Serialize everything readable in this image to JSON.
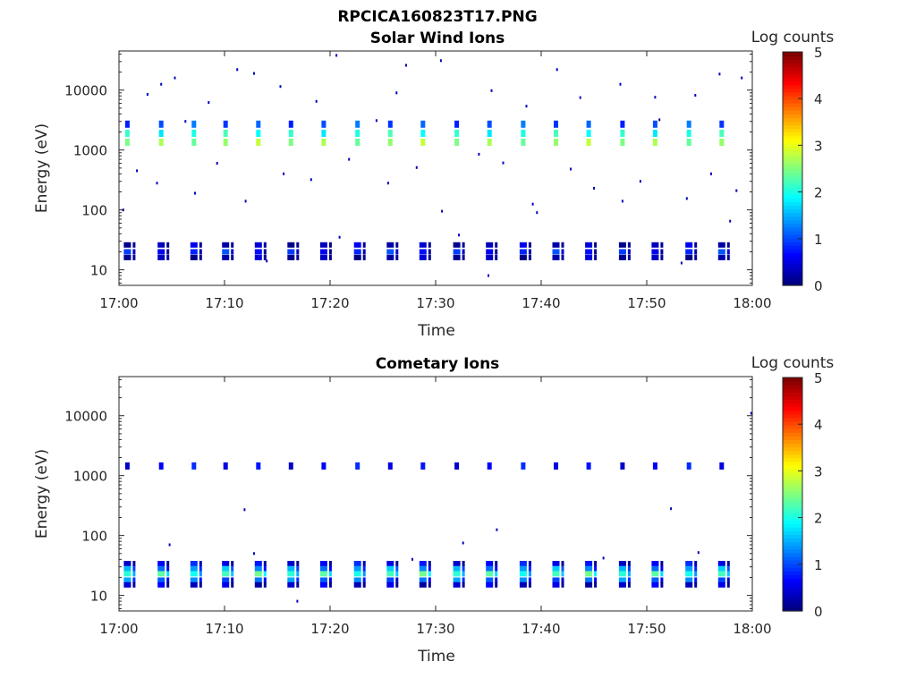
{
  "figure": {
    "title": "RPCICA160823T17.PNG"
  },
  "chart_data": [
    {
      "type": "heatmap",
      "title": "Solar Wind Ions",
      "xlabel": "Time",
      "ylabel": "Energy (eV)",
      "x_range": [
        "17:00",
        "18:00"
      ],
      "x_ticks": [
        "17:00",
        "17:10",
        "17:20",
        "17:30",
        "17:40",
        "17:50",
        "18:00"
      ],
      "y_scale": "log",
      "ylim": [
        5.5,
        45000
      ],
      "y_ticks": [
        {
          "value": 10,
          "label": "10"
        },
        {
          "value": 100,
          "label": "100"
        },
        {
          "value": 1000,
          "label": "1000"
        },
        {
          "value": 10000,
          "label": "10000"
        }
      ],
      "colorbar": {
        "label": "Log counts",
        "min": 0,
        "max": 5,
        "ticks": [
          "0",
          "1",
          "2",
          "3",
          "4",
          "5"
        ],
        "colormap": "jet"
      },
      "sweep_start_minutes": [
        0.8,
        4.0,
        7.1,
        10.1,
        13.2,
        16.3,
        19.4,
        22.6,
        25.7,
        28.8,
        32.0,
        35.1,
        38.3,
        41.4,
        44.5,
        47.7,
        50.8,
        54.0,
        57.1
      ],
      "bands": [
        {
          "name": "upper",
          "energies": [
            2700,
            1900,
            1350
          ],
          "log_counts": [
            1.0,
            2.0,
            2.6
          ]
        },
        {
          "name": "low",
          "energies": [
            26,
            20,
            16
          ],
          "log_counts": [
            0.3,
            0.8,
            0.2
          ]
        }
      ],
      "sparse_points": [
        {
          "t": 2.7,
          "e": 8500,
          "c": 0.3
        },
        {
          "t": 4.0,
          "e": 12500,
          "c": 0.3
        },
        {
          "t": 5.3,
          "e": 16000,
          "c": 0.3
        },
        {
          "t": 8.5,
          "e": 6200,
          "c": 0.3
        },
        {
          "t": 11.2,
          "e": 22000,
          "c": 0.3
        },
        {
          "t": 12.8,
          "e": 19000,
          "c": 0.3
        },
        {
          "t": 15.3,
          "e": 11500,
          "c": 0.3
        },
        {
          "t": 18.7,
          "e": 6500,
          "c": 0.3
        },
        {
          "t": 20.6,
          "e": 38000,
          "c": 0.3
        },
        {
          "t": 26.3,
          "e": 9000,
          "c": 0.3
        },
        {
          "t": 27.2,
          "e": 26000,
          "c": 0.3
        },
        {
          "t": 30.5,
          "e": 31000,
          "c": 0.3
        },
        {
          "t": 35.3,
          "e": 9800,
          "c": 0.3
        },
        {
          "t": 38.6,
          "e": 5400,
          "c": 0.3
        },
        {
          "t": 41.5,
          "e": 22000,
          "c": 0.3
        },
        {
          "t": 43.7,
          "e": 7500,
          "c": 0.3
        },
        {
          "t": 47.5,
          "e": 12500,
          "c": 0.3
        },
        {
          "t": 50.8,
          "e": 7600,
          "c": 0.3
        },
        {
          "t": 54.6,
          "e": 8200,
          "c": 0.3
        },
        {
          "t": 56.9,
          "e": 18500,
          "c": 0.3
        },
        {
          "t": 59.0,
          "e": 16000,
          "c": 0.3
        },
        {
          "t": 1.7,
          "e": 450,
          "c": 0.3
        },
        {
          "t": 3.6,
          "e": 280,
          "c": 0.3
        },
        {
          "t": 7.2,
          "e": 190,
          "c": 0.3
        },
        {
          "t": 9.3,
          "e": 600,
          "c": 0.3
        },
        {
          "t": 12.0,
          "e": 140,
          "c": 0.3
        },
        {
          "t": 15.6,
          "e": 400,
          "c": 0.3
        },
        {
          "t": 18.2,
          "e": 320,
          "c": 0.3
        },
        {
          "t": 21.8,
          "e": 700,
          "c": 0.3
        },
        {
          "t": 25.5,
          "e": 280,
          "c": 0.3
        },
        {
          "t": 28.2,
          "e": 510,
          "c": 0.3
        },
        {
          "t": 30.6,
          "e": 95,
          "c": 0.3
        },
        {
          "t": 34.1,
          "e": 850,
          "c": 0.3
        },
        {
          "t": 36.4,
          "e": 610,
          "c": 0.3
        },
        {
          "t": 39.2,
          "e": 125,
          "c": 0.3
        },
        {
          "t": 42.8,
          "e": 480,
          "c": 0.3
        },
        {
          "t": 45.0,
          "e": 230,
          "c": 0.3
        },
        {
          "t": 47.7,
          "e": 140,
          "c": 0.3
        },
        {
          "t": 49.4,
          "e": 300,
          "c": 0.3
        },
        {
          "t": 53.8,
          "e": 155,
          "c": 0.3
        },
        {
          "t": 56.1,
          "e": 400,
          "c": 0.3
        },
        {
          "t": 58.5,
          "e": 210,
          "c": 0.3
        },
        {
          "t": 35.0,
          "e": 8,
          "c": 0.3
        },
        {
          "t": 53.3,
          "e": 13,
          "c": 0.3
        },
        {
          "t": 32.2,
          "e": 38,
          "c": 0.3
        },
        {
          "t": 14.0,
          "e": 14,
          "c": 0.3
        },
        {
          "t": 0.4,
          "e": 100,
          "c": 0.3
        },
        {
          "t": 57.9,
          "e": 65,
          "c": 0.3
        },
        {
          "t": 6.3,
          "e": 3000,
          "c": 0.3
        },
        {
          "t": 24.4,
          "e": 3100,
          "c": 0.3
        },
        {
          "t": 51.2,
          "e": 3200,
          "c": 0.3
        },
        {
          "t": 20.9,
          "e": 35,
          "c": 0.3
        },
        {
          "t": 39.6,
          "e": 90,
          "c": 0.3
        }
      ]
    },
    {
      "type": "heatmap",
      "title": "Cometary Ions",
      "xlabel": "Time",
      "ylabel": "Energy (eV)",
      "x_range": [
        "17:00",
        "18:00"
      ],
      "x_ticks": [
        "17:00",
        "17:10",
        "17:20",
        "17:30",
        "17:40",
        "17:50",
        "18:00"
      ],
      "y_scale": "log",
      "ylim": [
        5.5,
        45000
      ],
      "y_ticks": [
        {
          "value": 10,
          "label": "10"
        },
        {
          "value": 100,
          "label": "100"
        },
        {
          "value": 1000,
          "label": "1000"
        },
        {
          "value": 10000,
          "label": "10000"
        }
      ],
      "colorbar": {
        "label": "Log counts",
        "min": 0,
        "max": 5,
        "ticks": [
          "0",
          "1",
          "2",
          "3",
          "4",
          "5"
        ],
        "colormap": "jet"
      },
      "sweep_start_minutes": [
        0.8,
        4.0,
        7.1,
        10.1,
        13.2,
        16.3,
        19.4,
        22.6,
        25.7,
        28.8,
        32.0,
        35.1,
        38.3,
        41.4,
        44.5,
        47.7,
        50.8,
        54.0,
        57.1
      ],
      "bands": [
        {
          "name": "upper",
          "energies": [
            1450
          ],
          "log_counts": [
            0.6
          ]
        },
        {
          "name": "low",
          "energies": [
            34,
            28,
            23,
            18,
            15
          ],
          "log_counts": [
            0.6,
            1.4,
            2.2,
            1.2,
            0.4
          ]
        }
      ],
      "sparse_points": [
        {
          "t": 4.8,
          "e": 70,
          "c": 0.3
        },
        {
          "t": 11.9,
          "e": 270,
          "c": 0.3
        },
        {
          "t": 12.8,
          "e": 50,
          "c": 0.3
        },
        {
          "t": 16.9,
          "e": 8,
          "c": 0.3
        },
        {
          "t": 32.6,
          "e": 75,
          "c": 0.3
        },
        {
          "t": 35.8,
          "e": 125,
          "c": 0.3
        },
        {
          "t": 52.3,
          "e": 280,
          "c": 0.3
        },
        {
          "t": 54.9,
          "e": 52,
          "c": 0.3
        },
        {
          "t": 59.9,
          "e": 11000,
          "c": 0.3
        },
        {
          "t": 27.8,
          "e": 40,
          "c": 0.3
        },
        {
          "t": 45.9,
          "e": 42,
          "c": 0.3
        }
      ]
    }
  ]
}
